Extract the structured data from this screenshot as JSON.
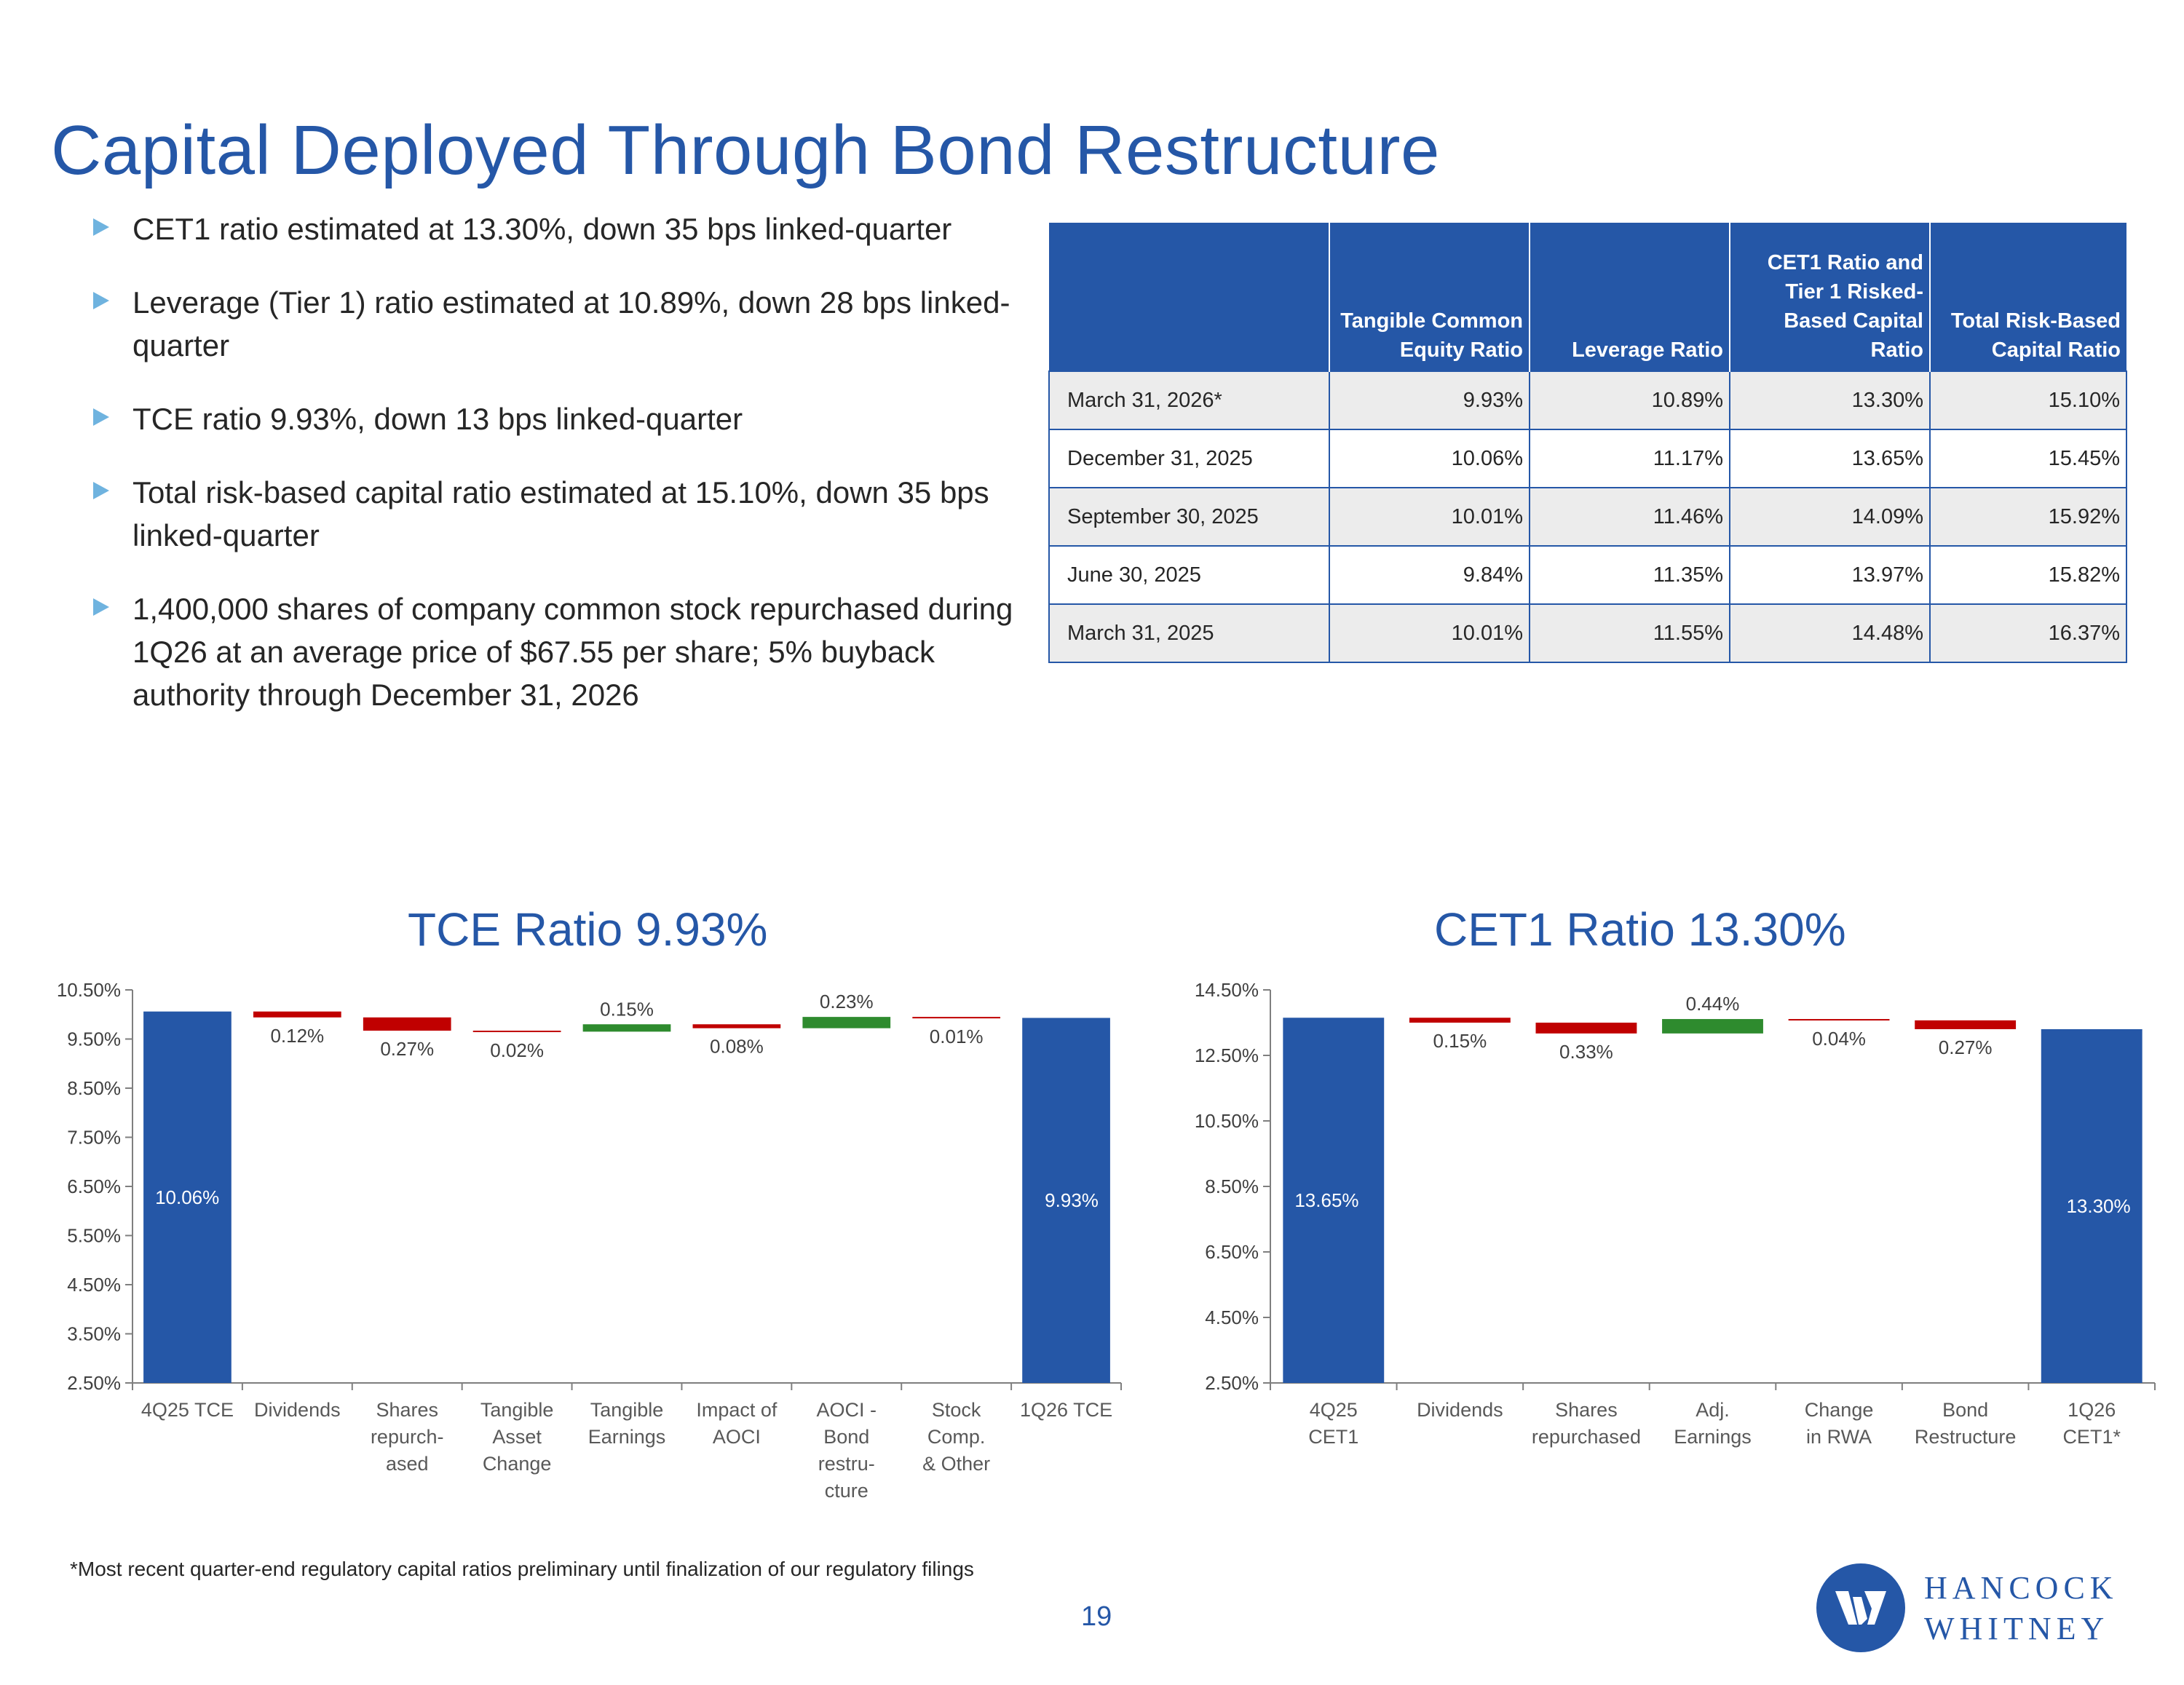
{
  "title": "Capital Deployed Through Bond Restructure",
  "bullets": [
    "CET1 ratio estimated at 13.30%, down 35 bps linked-quarter",
    "Leverage (Tier 1) ratio estimated at 10.89%, down 28 bps linked-quarter",
    "TCE ratio 9.93%, down 13 bps linked-quarter",
    "Total risk-based capital ratio estimated at 15.10%, down 35 bps linked-quarter",
    "1,400,000 shares of company common stock repurchased during 1Q26 at an average price of $67.55 per share; 5% buyback authority through December 31, 2026"
  ],
  "table": {
    "headers": [
      "",
      "Tangible Common Equity Ratio",
      "Leverage Ratio",
      "CET1 Ratio and Tier 1 Risked-Based Capital Ratio",
      "Total Risk-Based Capital Ratio"
    ],
    "rows": [
      [
        "March 31, 2026*",
        "9.93%",
        "10.89%",
        "13.30%",
        "15.10%"
      ],
      [
        "December 31, 2025",
        "10.06%",
        "11.17%",
        "13.65%",
        "15.45%"
      ],
      [
        "September 30, 2025",
        "10.01%",
        "11.46%",
        "14.09%",
        "15.92%"
      ],
      [
        "June 30, 2025",
        "9.84%",
        "11.35%",
        "13.97%",
        "15.82%"
      ],
      [
        "March 31, 2025",
        "10.01%",
        "11.55%",
        "14.48%",
        "16.37%"
      ]
    ]
  },
  "colors": {
    "total": "#2557a7",
    "decrease": "#c00000",
    "increase": "#2e8b2e",
    "axis": "#7f7f7f"
  },
  "chart_data": [
    {
      "type": "bar",
      "subtype": "waterfall",
      "title": "TCE Ratio 9.93%",
      "categories": [
        "4Q25 TCE",
        "Dividends",
        "Shares repurch- ased",
        "Tangible Asset Change",
        "Tangible Earnings",
        "Impact of AOCI",
        "AOCI - Bond restru- cture",
        "Stock Comp. & Other",
        "1Q26 TCE"
      ],
      "values": [
        10.06,
        -0.12,
        -0.27,
        -0.02,
        0.15,
        -0.08,
        0.23,
        -0.01,
        9.93
      ],
      "data_labels": [
        "10.06%",
        "0.12%",
        "0.27%",
        "0.02%",
        "0.15%",
        "0.08%",
        "0.23%",
        "0.01%",
        "9.93%"
      ],
      "yticks": [
        "2.50%",
        "3.50%",
        "4.50%",
        "5.50%",
        "6.50%",
        "7.50%",
        "8.50%",
        "9.50%",
        "10.50%"
      ],
      "ylim": [
        2.5,
        10.5
      ]
    },
    {
      "type": "bar",
      "subtype": "waterfall",
      "title": "CET1 Ratio 13.30%",
      "categories": [
        "4Q25 CET1",
        "Dividends",
        "Shares repurchased",
        "Adj. Earnings",
        "Change in RWA",
        "Bond Restructure",
        "1Q26 CET1*"
      ],
      "values": [
        13.65,
        -0.15,
        -0.33,
        0.44,
        -0.04,
        -0.27,
        13.3
      ],
      "data_labels": [
        "13.65%",
        "0.15%",
        "0.33%",
        "0.44%",
        "0.04%",
        "0.27%",
        "13.30%"
      ],
      "yticks": [
        "2.50%",
        "4.50%",
        "6.50%",
        "8.50%",
        "10.50%",
        "12.50%",
        "14.50%"
      ],
      "ylim": [
        2.5,
        14.5
      ]
    }
  ],
  "footnote": "*Most recent quarter-end regulatory capital ratios preliminary until finalization of our regulatory filings",
  "page_number": "19",
  "logo": {
    "line1": "HANCOCK",
    "line2": "WHITNEY"
  }
}
